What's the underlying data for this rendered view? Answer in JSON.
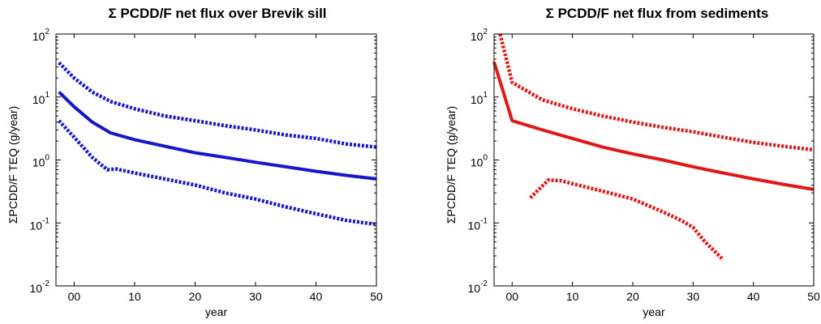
{
  "chart_data": [
    {
      "type": "line",
      "title": "Σ PCDD/F net flux over Brevik sill",
      "xlabel": "year",
      "ylabel": "ΣPCDD/F TEQ (g/year)",
      "xlim": [
        -3,
        50
      ],
      "ylim": [
        0.01,
        100
      ],
      "yscale": "log",
      "x_ticks": [
        {
          "v": 0,
          "label": "00"
        },
        {
          "v": 10,
          "label": "10"
        },
        {
          "v": 20,
          "label": "20"
        },
        {
          "v": 30,
          "label": "30"
        },
        {
          "v": 40,
          "label": "40"
        },
        {
          "v": 50,
          "label": "50"
        }
      ],
      "y_ticks": [
        {
          "v": 0.01,
          "base": "10",
          "exp": "-2"
        },
        {
          "v": 0.1,
          "base": "10",
          "exp": "-1"
        },
        {
          "v": 1,
          "base": "10",
          "exp": "0"
        },
        {
          "v": 10,
          "base": "10",
          "exp": "1"
        },
        {
          "v": 100,
          "base": "10",
          "exp": "2"
        }
      ],
      "color": "#1616cc",
      "series": [
        {
          "style": "dotted",
          "x": [
            -2.5,
            0,
            3,
            6,
            10,
            15,
            20,
            25,
            30,
            35,
            40,
            45,
            50
          ],
          "y": [
            35,
            20,
            12,
            8.5,
            6.5,
            5,
            4.2,
            3.5,
            3,
            2.5,
            2.2,
            1.8,
            1.6
          ]
        },
        {
          "style": "solid",
          "x": [
            -2.5,
            0,
            3,
            6,
            10,
            15,
            20,
            25,
            30,
            35,
            40,
            45,
            50
          ],
          "y": [
            12,
            7,
            4,
            2.7,
            2.1,
            1.65,
            1.3,
            1.1,
            0.92,
            0.78,
            0.66,
            0.57,
            0.5
          ]
        },
        {
          "style": "dotted",
          "x": [
            -2.5,
            0,
            3,
            5.5,
            7,
            10,
            15,
            20,
            25,
            30,
            35,
            40,
            45,
            50
          ],
          "y": [
            4.2,
            2.3,
            1.1,
            0.7,
            0.72,
            0.62,
            0.5,
            0.4,
            0.3,
            0.24,
            0.18,
            0.14,
            0.11,
            0.095
          ]
        }
      ]
    },
    {
      "type": "line",
      "title": "Σ PCDD/F net flux from sediments",
      "xlabel": "year",
      "ylabel": "ΣPCDD/F TEQ (g/year)",
      "xlim": [
        -3,
        50
      ],
      "ylim": [
        0.01,
        100
      ],
      "yscale": "log",
      "x_ticks": [
        {
          "v": 0,
          "label": "00"
        },
        {
          "v": 10,
          "label": "10"
        },
        {
          "v": 20,
          "label": "20"
        },
        {
          "v": 30,
          "label": "30"
        },
        {
          "v": 40,
          "label": "40"
        },
        {
          "v": 50,
          "label": "50"
        }
      ],
      "y_ticks": [
        {
          "v": 0.01,
          "base": "10",
          "exp": "-2"
        },
        {
          "v": 0.1,
          "base": "10",
          "exp": "-1"
        },
        {
          "v": 1,
          "base": "10",
          "exp": "0"
        },
        {
          "v": 10,
          "base": "10",
          "exp": "1"
        },
        {
          "v": 100,
          "base": "10",
          "exp": "2"
        }
      ],
      "color": "#e01818",
      "series": [
        {
          "style": "dotted",
          "x": [
            -2,
            0,
            5,
            10,
            15,
            20,
            25,
            30,
            35,
            40,
            45,
            50
          ],
          "y": [
            100,
            17,
            9,
            6.5,
            5,
            4,
            3.3,
            2.8,
            2.3,
            1.9,
            1.65,
            1.45
          ]
        },
        {
          "style": "solid",
          "x": [
            -3,
            0,
            5,
            10,
            15,
            20,
            25,
            30,
            35,
            40,
            45,
            50
          ],
          "y": [
            36,
            4.2,
            3,
            2.2,
            1.6,
            1.25,
            1.0,
            0.78,
            0.62,
            0.5,
            0.41,
            0.34
          ]
        },
        {
          "style": "dotted",
          "x": [
            3,
            6,
            8,
            10,
            15,
            20,
            25,
            28,
            30,
            32,
            35
          ],
          "y": [
            0.25,
            0.48,
            0.47,
            0.42,
            0.32,
            0.24,
            0.15,
            0.11,
            0.085,
            0.05,
            0.026
          ]
        }
      ]
    }
  ]
}
